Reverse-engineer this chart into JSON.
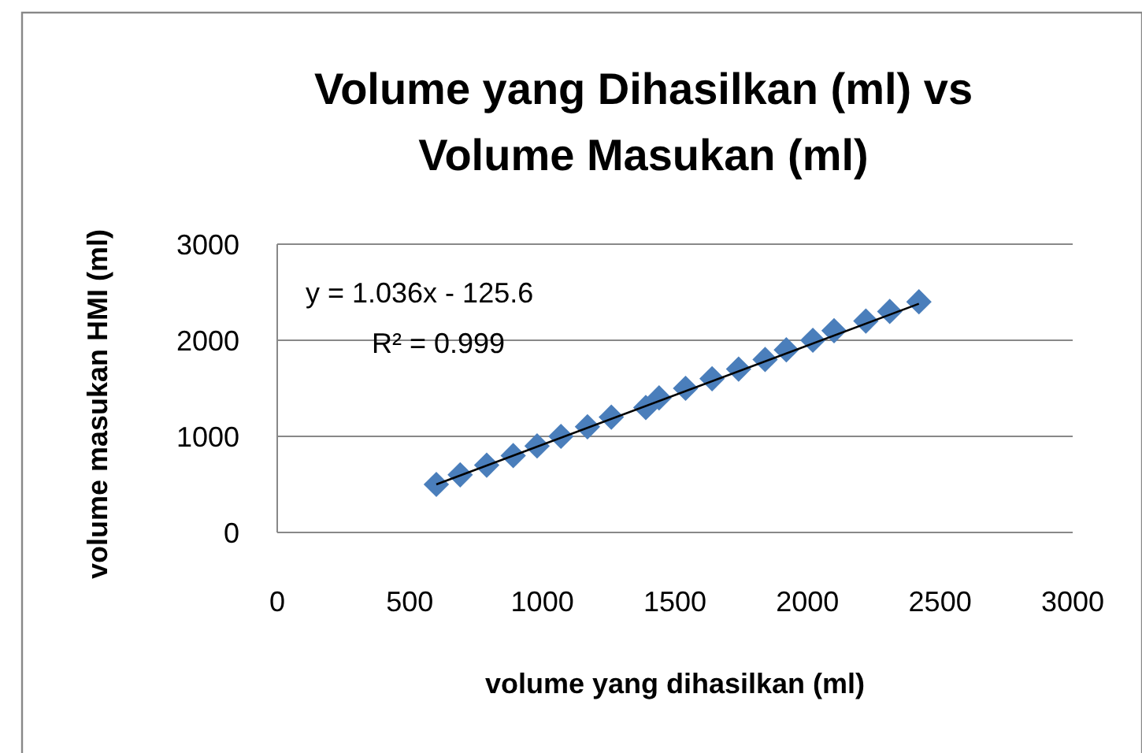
{
  "chart_data": {
    "type": "scatter",
    "title": "Volume yang Dihasilkan (ml) vs Volume Masukan (ml)",
    "xlabel": "volume yang dihasilkan  (ml)",
    "ylabel": "volume masukan HMI (ml)",
    "xlim": [
      0,
      3000
    ],
    "xticks": [
      0,
      500,
      1000,
      1500,
      2000,
      2500,
      3000
    ],
    "ylim": [
      0,
      3000
    ],
    "yticks": [
      0,
      1000,
      2000,
      3000
    ],
    "grid": "y",
    "marker": "diamond",
    "series": [
      {
        "color": "#4a7ebb",
        "x": [
          600,
          690,
          790,
          890,
          980,
          1070,
          1170,
          1260,
          1390,
          1440,
          1540,
          1640,
          1740,
          1840,
          1920,
          2020,
          2100,
          2220,
          2310,
          2420
        ],
        "values": [
          500,
          600,
          700,
          800,
          900,
          1000,
          1100,
          1200,
          1300,
          1400,
          1500,
          1600,
          1700,
          1800,
          1900,
          2000,
          2100,
          2200,
          2300,
          2400
        ]
      },
      {
        "type": "line",
        "color": "#000000",
        "marker": "none",
        "x": [
          600,
          2420
        ],
        "values": [
          500,
          2380
        ]
      }
    ],
    "annotations": [
      "y = 1.036x - 125.6",
      "R² = 0.999"
    ]
  }
}
